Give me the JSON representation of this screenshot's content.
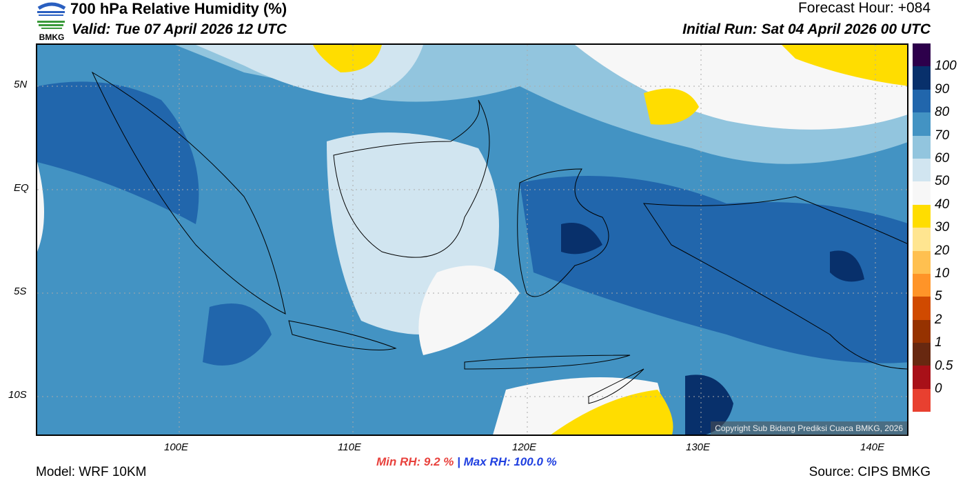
{
  "header": {
    "title": "700 hPa Relative Humidity (%)",
    "valid": "Valid: Tue 07 April 2026 12 UTC",
    "forecast_hour": "Forecast Hour: +084",
    "initial_run": "Initial Run: Sat 04 April 2026 00 UTC",
    "logo_text": "BMKG"
  },
  "map": {
    "lat_labels": [
      "5N",
      "EQ",
      "5S",
      "10S"
    ],
    "lon_labels": [
      "100E",
      "110E",
      "120E",
      "130E",
      "140E"
    ],
    "copyright": "Copyright Sub Bidang Prediksi Cuaca BMKG, 2026"
  },
  "colorbar": {
    "colors": [
      "#2d004b",
      "#08306b",
      "#2166ac",
      "#4393c3",
      "#92c5de",
      "#d1e5f0",
      "#f7f7f7",
      "#ffdd00",
      "#ffe590",
      "#ffc050",
      "#ff9428",
      "#d04a00",
      "#963200",
      "#682810",
      "#a81018",
      "#e84030"
    ],
    "labels": [
      "100",
      "90",
      "80",
      "70",
      "60",
      "50",
      "40",
      "30",
      "20",
      "10",
      "5",
      "2",
      "1",
      "0.5",
      "0"
    ]
  },
  "footer": {
    "model": "Model: WRF 10KM",
    "source": "Source: CIPS BMKG",
    "min_rh": "Min RH:  9.2 %",
    "max_rh": "| Max RH: 100.0 %"
  }
}
